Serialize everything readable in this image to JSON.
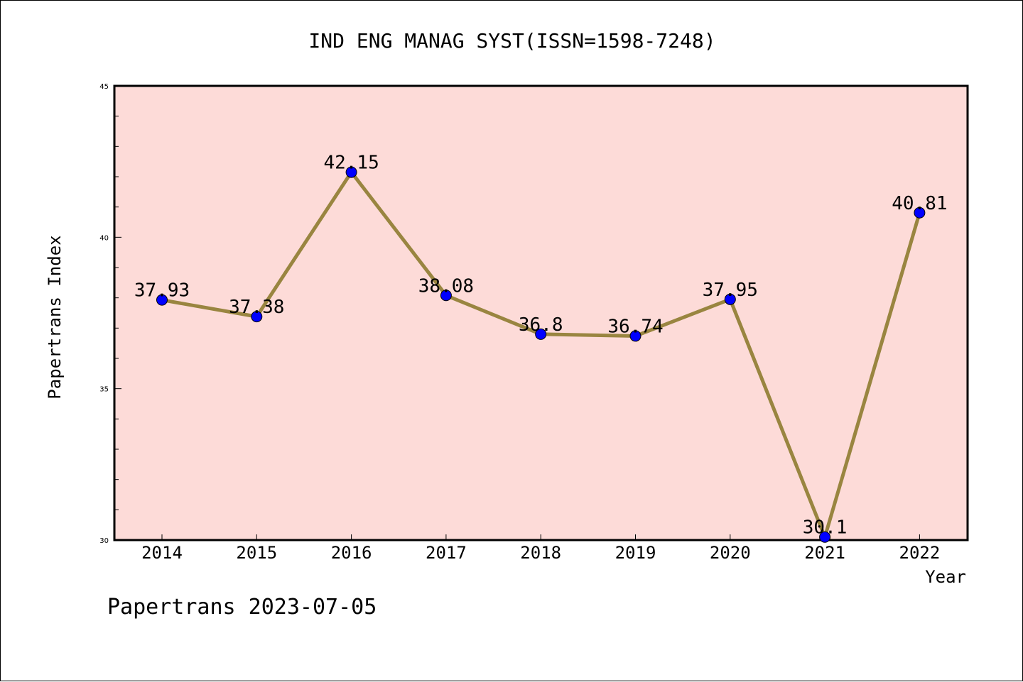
{
  "chart_data": {
    "type": "line",
    "title": "IND ENG MANAG SYST(ISSN=1598-7248)",
    "xlabel": "Year",
    "ylabel": "Papertrans Index",
    "categories": [
      "2014",
      "2015",
      "2016",
      "2017",
      "2018",
      "2019",
      "2020",
      "2021",
      "2022"
    ],
    "values": [
      37.93,
      37.38,
      42.15,
      38.08,
      36.8,
      36.74,
      37.95,
      30.1,
      40.81
    ],
    "data_labels": [
      "37.93",
      "37.38",
      "42.15",
      "38.08",
      "36.8",
      "36.74",
      "37.95",
      "30.1",
      "40.81"
    ],
    "ylim": [
      30,
      45
    ],
    "yticks": [
      "30",
      "35",
      "40",
      "45"
    ],
    "grid": false,
    "legend": "none",
    "footer": "Papertrans 2023-07-05",
    "colors": {
      "plot_background": "#fddbd8",
      "line": "#998540",
      "marker": "#0000ff",
      "axes": "#000000"
    }
  }
}
